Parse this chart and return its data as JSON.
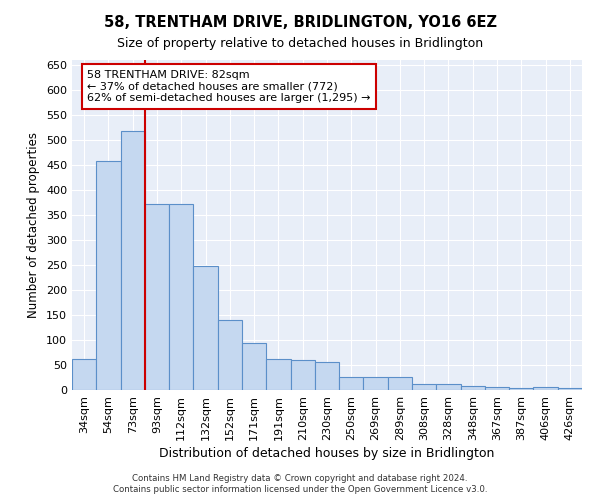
{
  "title": "58, TRENTHAM DRIVE, BRIDLINGTON, YO16 6EZ",
  "subtitle": "Size of property relative to detached houses in Bridlington",
  "xlabel": "Distribution of detached houses by size in Bridlington",
  "ylabel": "Number of detached properties",
  "categories": [
    "34sqm",
    "54sqm",
    "73sqm",
    "93sqm",
    "112sqm",
    "132sqm",
    "152sqm",
    "171sqm",
    "191sqm",
    "210sqm",
    "230sqm",
    "250sqm",
    "269sqm",
    "289sqm",
    "308sqm",
    "328sqm",
    "348sqm",
    "367sqm",
    "387sqm",
    "406sqm",
    "426sqm"
  ],
  "values": [
    63,
    458,
    519,
    372,
    372,
    248,
    140,
    94,
    62,
    60,
    57,
    27,
    27,
    27,
    12,
    12,
    9,
    7,
    5,
    7,
    5
  ],
  "bar_color": "#c5d8f0",
  "bar_edge_color": "#5b8fc9",
  "property_line_color": "#cc0000",
  "annotation_text": "58 TRENTHAM DRIVE: 82sqm\n← 37% of detached houses are smaller (772)\n62% of semi-detached houses are larger (1,295) →",
  "annotation_box_color": "#cc0000",
  "ylim": [
    0,
    660
  ],
  "yticks": [
    0,
    50,
    100,
    150,
    200,
    250,
    300,
    350,
    400,
    450,
    500,
    550,
    600,
    650
  ],
  "background_color": "#e8eef8",
  "footer_line1": "Contains HM Land Registry data © Crown copyright and database right 2024.",
  "footer_line2": "Contains public sector information licensed under the Open Government Licence v3.0.",
  "title_fontsize": 10.5,
  "subtitle_fontsize": 9,
  "xlabel_fontsize": 9,
  "ylabel_fontsize": 8.5,
  "tick_fontsize": 8,
  "annotation_fontsize": 8
}
